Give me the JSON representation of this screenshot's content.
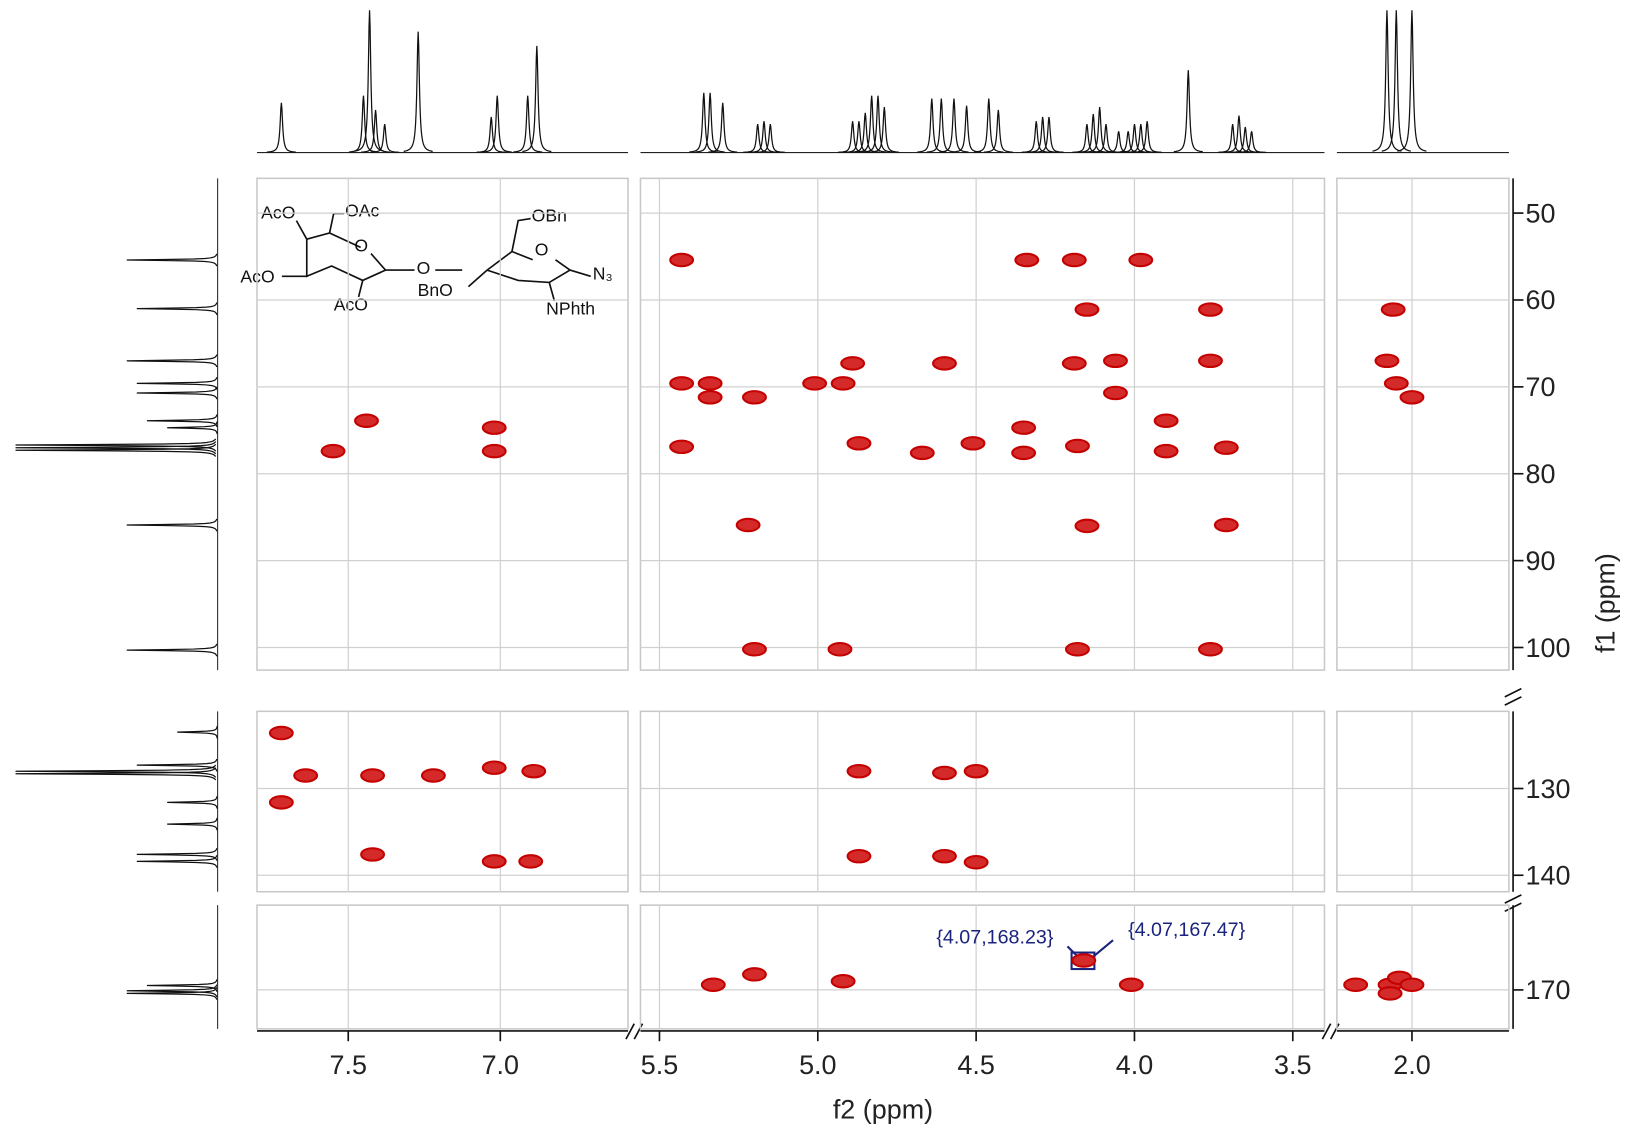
{
  "chart_data": {
    "type": "contour",
    "x_label": "f2 (ppm)",
    "y_label": "f1 (ppm)",
    "color": "#c40000",
    "grid": true,
    "x_axes": [
      {
        "xlim": [
          7.8,
          6.58
        ],
        "xticks": [
          7.5,
          {
            "value": 7,
            "label": "7.0"
          }
        ]
      },
      {
        "xlim": [
          5.56,
          3.4
        ],
        "xticks": [
          5.5,
          {
            "value": 5,
            "label": "5.0"
          },
          4.5,
          {
            "value": 4,
            "label": "4.0"
          },
          3.5
        ]
      },
      {
        "xlim": [
          2.24,
          1.69
        ],
        "xticks": [
          {
            "value": 2,
            "label": "2.0"
          }
        ]
      }
    ],
    "y_axes": [
      {
        "ylim": [
          46,
          102.6
        ],
        "yticks": [
          50,
          60,
          70,
          80,
          90,
          100
        ]
      },
      {
        "ylim": [
          121.1,
          141.9
        ],
        "yticks": [
          130,
          140
        ]
      },
      {
        "ylim": [
          160.2,
          174.5
        ],
        "yticks": [
          170
        ]
      }
    ],
    "peaks": {
      "x": [
        7.55,
        7.44,
        7.02,
        7.02,
        7.72,
        7.72,
        7.64,
        7.42,
        7.42,
        7.22,
        7.02,
        6.89,
        7.02,
        6.9,
        5.43,
        5.43,
        5.34,
        5.34,
        5.2,
        5.43,
        5.2,
        5.22,
        5.01,
        4.89,
        4.92,
        4.87,
        4.67,
        4.6,
        4.51,
        4.35,
        4.35,
        4.34,
        4.19,
        3.98,
        4.19,
        4.06,
        4.06,
        4.18,
        4.15,
        4.18,
        3.76,
        3.76,
        3.9,
        3.9,
        3.71,
        3.71,
        3.76,
        4.15,
        4.93,
        4.87,
        4.87,
        4.6,
        4.5,
        4.6,
        4.5,
        5.33,
        5.2,
        4.92,
        4.16,
        4.01,
        2.06,
        2.08,
        2.05,
        2.0,
        2.18,
        2.07,
        2.04,
        2.07,
        2.0
      ],
      "y": [
        77.4,
        73.9,
        74.7,
        77.4,
        123.6,
        131.6,
        128.5,
        128.5,
        137.6,
        128.5,
        127.6,
        128.0,
        138.4,
        138.4,
        55.4,
        69.6,
        69.6,
        71.2,
        71.2,
        76.9,
        100.2,
        85.9,
        69.6,
        67.3,
        69.6,
        76.5,
        77.6,
        67.3,
        76.5,
        74.7,
        77.6,
        55.4,
        55.4,
        55.4,
        67.3,
        67.0,
        70.7,
        76.8,
        86.0,
        100.2,
        61.1,
        67.0,
        73.9,
        77.4,
        77.0,
        85.9,
        100.2,
        61.1,
        100.2,
        128.0,
        137.8,
        128.2,
        128.0,
        137.8,
        138.5,
        169.4,
        168.2,
        169.0,
        166.6,
        169.4,
        61.1,
        67.0,
        69.6,
        71.2,
        169.4,
        169.4,
        168.6,
        170.4,
        169.4
      ]
    },
    "f2_projection": {
      "x": [
        7.72,
        7.45,
        7.43,
        7.41,
        7.38,
        7.27,
        7.03,
        7.01,
        6.91,
        6.88,
        5.36,
        5.34,
        5.3,
        5.19,
        5.17,
        5.15,
        4.89,
        4.87,
        4.85,
        4.83,
        4.81,
        4.79,
        4.64,
        4.61,
        4.57,
        4.53,
        4.46,
        4.43,
        4.31,
        4.29,
        4.27,
        4.15,
        4.13,
        4.11,
        4.09,
        4.05,
        4.02,
        4.0,
        3.98,
        3.96,
        3.83,
        3.69,
        3.67,
        3.65,
        3.63,
        3.39,
        2.08,
        2.05,
        2.0
      ],
      "intensity": [
        35,
        40,
        100,
        30,
        20,
        85,
        25,
        40,
        40,
        75,
        42,
        42,
        35,
        20,
        22,
        20,
        22,
        22,
        28,
        40,
        40,
        32,
        38,
        38,
        38,
        33,
        38,
        30,
        22,
        25,
        25,
        20,
        27,
        32,
        20,
        15,
        15,
        20,
        20,
        22,
        58,
        20,
        26,
        18,
        15,
        5,
        100,
        100,
        100
      ]
    },
    "f1_projection": {
      "y": [
        55.4,
        61.0,
        67.0,
        69.6,
        70.7,
        73.9,
        74.7,
        76.7,
        77.0,
        77.3,
        85.9,
        100.3,
        123.5,
        127.3,
        128.0,
        128.3,
        131.6,
        134.1,
        137.6,
        138.4,
        169.5,
        170.1,
        170.4
      ],
      "intensity": [
        45,
        40,
        45,
        40,
        40,
        35,
        25,
        100,
        100,
        100,
        45,
        45,
        20,
        40,
        100,
        100,
        25,
        25,
        40,
        40,
        35,
        45,
        45
      ]
    },
    "annotations": [
      "{4.07,168.23}",
      "{4.07,167.47}"
    ],
    "structure_labels": [
      "AcO",
      "OAc",
      "AcO",
      "AcO",
      "O",
      "O",
      "O",
      "OBn",
      "BnO",
      "N₃",
      "NPhth"
    ]
  }
}
